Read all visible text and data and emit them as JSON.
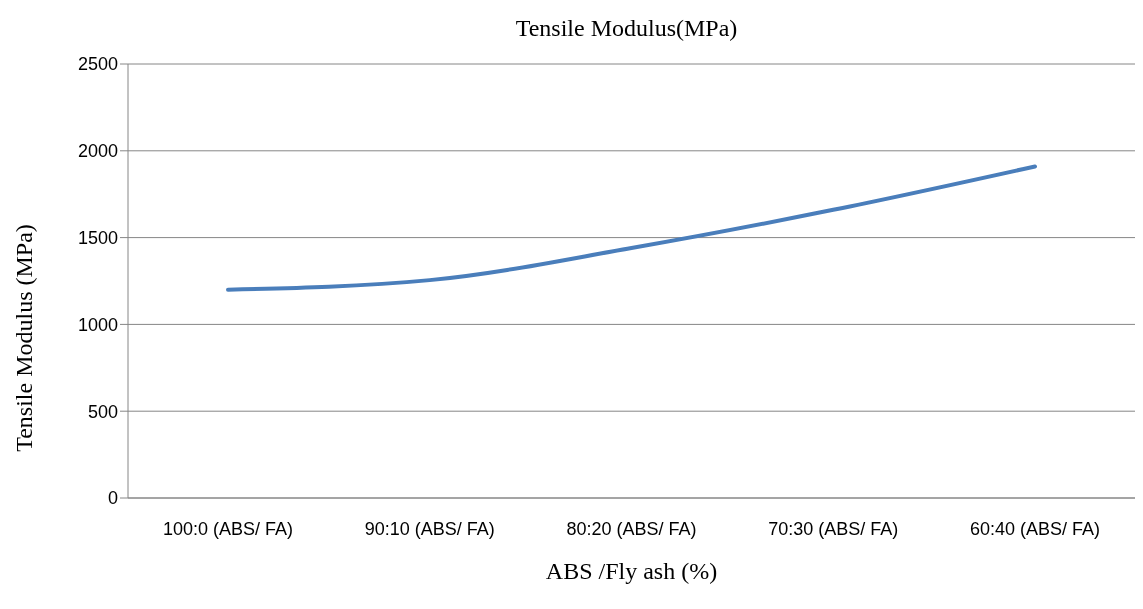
{
  "chart_data": {
    "type": "line",
    "title": "Tensile Modulus(MPa)",
    "xlabel": "ABS /Fly ash (%)",
    "ylabel": "Tensile Modulus (MPa)",
    "categories": [
      "100:0 (ABS/ FA)",
      "90:10 (ABS/ FA)",
      "80:20 (ABS/ FA)",
      "70:30 (ABS/ FA)",
      "60:40 (ABS/ FA)"
    ],
    "series": [
      {
        "color": "#4a7ebb",
        "values": [
          1200,
          1255,
          1440,
          1660,
          1910
        ]
      }
    ],
    "ylim": [
      0,
      2500
    ],
    "yticks": [
      0,
      500,
      1000,
      1500,
      2000,
      2500
    ],
    "grid": "y",
    "legend": false,
    "marker": "none",
    "line_style": "solid"
  }
}
